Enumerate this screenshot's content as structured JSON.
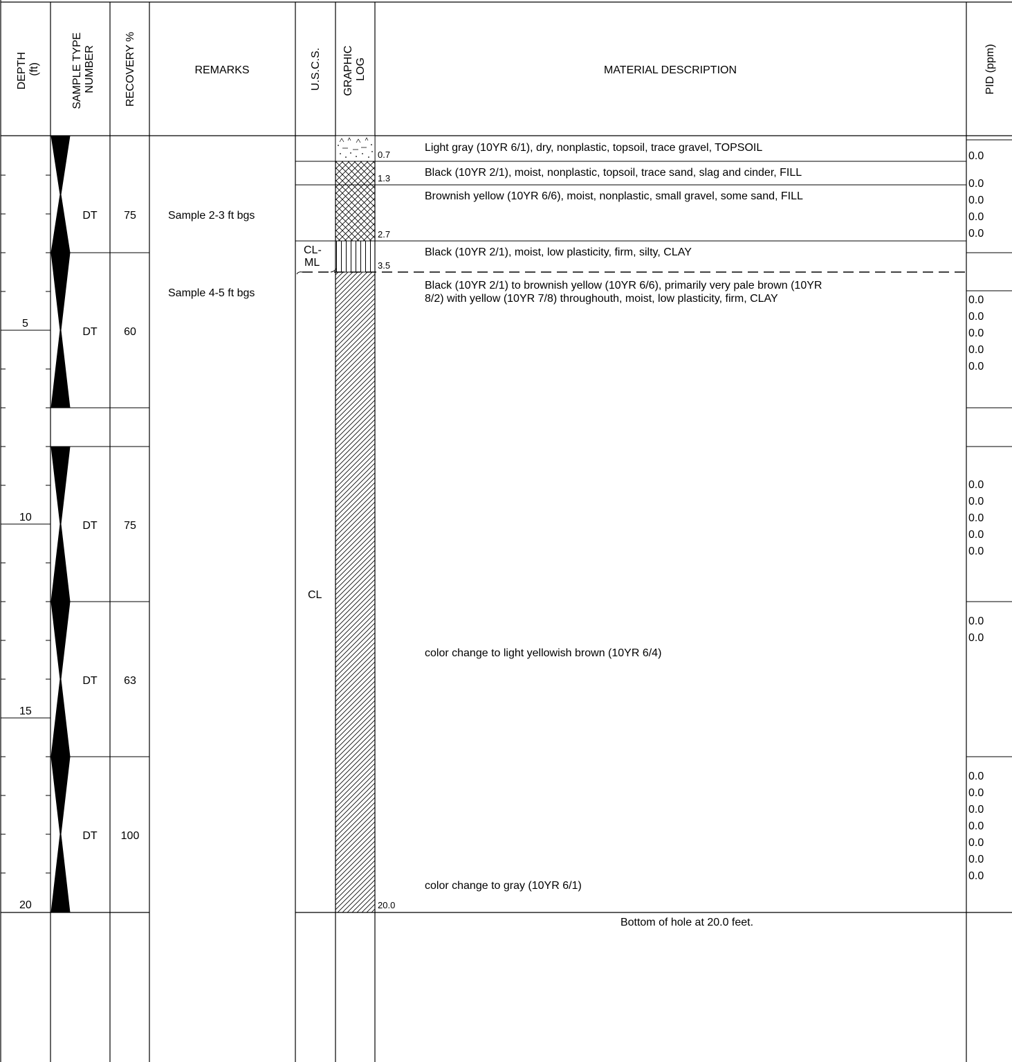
{
  "headers": {
    "depth": [
      "DEPTH",
      "(ft)"
    ],
    "sample": [
      "SAMPLE TYPE",
      "NUMBER"
    ],
    "recovery": "RECOVERY %",
    "remarks": "REMARKS",
    "uscs": "U.S.C.S.",
    "graphic": [
      "GRAPHIC",
      "LOG"
    ],
    "material": "MATERIAL DESCRIPTION",
    "pid": "PID (ppm)"
  },
  "depth_labels": [
    "5",
    "10",
    "15",
    "20"
  ],
  "samples": [
    {
      "type": "DT",
      "recovery": "75"
    },
    {
      "type": "DT",
      "recovery": "60"
    },
    {
      "type": "DT",
      "recovery": "75"
    },
    {
      "type": "DT",
      "recovery": "63"
    },
    {
      "type": "DT",
      "recovery": "100"
    }
  ],
  "remarks": [
    "Sample 2-3 ft bgs",
    "Sample 4-5 ft bgs"
  ],
  "uscs": {
    "clml": [
      "CL-",
      "ML"
    ],
    "cl": "CL"
  },
  "layer_depths": [
    "0.7",
    "1.3",
    "2.7",
    "3.5",
    "20.0"
  ],
  "descriptions": [
    "Light gray (10YR 6/1), dry, nonplastic, topsoil, trace gravel, TOPSOIL",
    "Black (10YR 2/1), moist, nonplastic, topsoil, trace sand, slag and cinder, FILL",
    "Brownish yellow (10YR 6/6), moist, nonplastic, small gravel, some sand, FILL",
    "Black (10YR 2/1), moist, low plasticity, firm, silty, CLAY",
    "Black (10YR 2/1) to brownish yellow (10YR 6/6), primarily very pale brown (10YR",
    "8/2) with yellow (10YR 7/8) throughouth, moist, low plasticity, firm, CLAY",
    "color change to light yellowish brown (10YR 6/4)",
    "color change to gray (10YR 6/1)"
  ],
  "bottom_note": "Bottom of hole at 20.0 feet.",
  "pid_groups": [
    [
      "0.0",
      "0.0",
      "0.0",
      "0.0",
      "0.0"
    ],
    [
      "0.0",
      "0.0",
      "0.0",
      "0.0",
      "0.0"
    ],
    [
      "0.0",
      "0.0",
      "0.0",
      "0.0",
      "0.0"
    ],
    [
      "0.0",
      "0.0"
    ],
    [
      "0.0",
      "0.0",
      "0.0",
      "0.0",
      "0.0",
      "0.0",
      "0.0"
    ]
  ]
}
